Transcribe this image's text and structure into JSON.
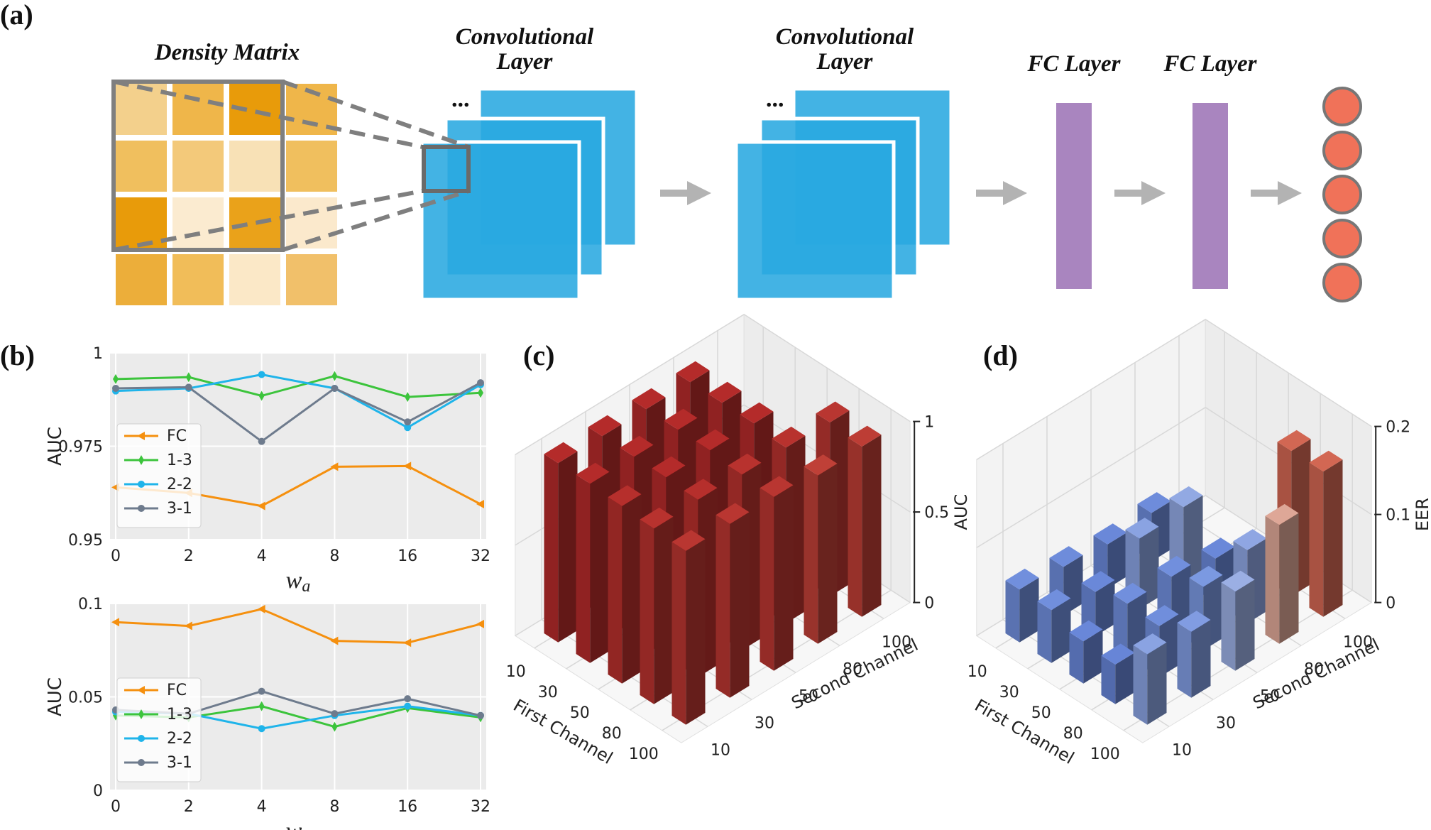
{
  "panel_labels": {
    "a": "(a)",
    "b": "(b)",
    "c": "(c)",
    "d": "(d)"
  },
  "network": {
    "density_matrix_title": "Density Matrix",
    "conv1_title": [
      "Convolutional",
      "Layer"
    ],
    "conv2_title": [
      "Convolutional",
      "Layer"
    ],
    "fc1_title": "FC Layer",
    "fc2_title": "FC Layer",
    "ellipsis": "...",
    "matrix_colors": [
      [
        "#f3d08c",
        "#efb64a",
        "#e89b0a",
        "#efb64a"
      ],
      [
        "#f0bf5e",
        "#f3c97a",
        "#f8e1b6",
        "#f0bf5e"
      ],
      [
        "#e89b0a",
        "#fbebd0",
        "#eaa21a",
        "#fbe9cc"
      ],
      [
        "#ecae3a",
        "#f1bd59",
        "#fbe8c7",
        "#f1c06a"
      ]
    ],
    "colors": {
      "conv": "#29a8e0",
      "fc": "#a985bf",
      "output": "#f07259",
      "arrow": "#b3b3b3"
    },
    "output_nodes": 5
  },
  "chart_data": [
    {
      "type": "line",
      "panel": "b-top",
      "categories": [
        "0",
        "2",
        "4",
        "8",
        "16",
        "32"
      ],
      "xlabel": "w_a",
      "ylabel": "AUC",
      "ylim": [
        0.95,
        1.0
      ],
      "yticks": [
        "0.95",
        "0.975",
        "1"
      ],
      "legend_position": "center-left",
      "grid": true,
      "series": [
        {
          "name": "FC",
          "color": "#f5900f",
          "marker": "tri",
          "values": [
            0.964,
            0.9625,
            0.959,
            0.9695,
            0.9697,
            0.9595
          ]
        },
        {
          "name": "1-3",
          "color": "#3cc43c",
          "marker": "diamond",
          "values": [
            0.993,
            0.9935,
            0.9885,
            0.9938,
            0.9882,
            0.9893
          ]
        },
        {
          "name": "2-2",
          "color": "#1fb4ea",
          "marker": "circle",
          "values": [
            0.9898,
            0.9905,
            0.9942,
            0.9905,
            0.98,
            0.9915
          ]
        },
        {
          "name": "3-1",
          "color": "#6e7b8d",
          "marker": "circle",
          "values": [
            0.9905,
            0.9908,
            0.9763,
            0.9905,
            0.9815,
            0.992
          ]
        }
      ]
    },
    {
      "type": "line",
      "panel": "b-bottom",
      "categories": [
        "0",
        "2",
        "4",
        "8",
        "16",
        "32"
      ],
      "xlabel": "w_a",
      "ylabel": "AUC",
      "ylim": [
        0,
        0.1
      ],
      "yticks": [
        "0",
        "0.05",
        "0.1"
      ],
      "legend_position": "lower-left",
      "grid": true,
      "series": [
        {
          "name": "FC",
          "color": "#f5900f",
          "marker": "tri",
          "values": [
            0.09,
            0.088,
            0.097,
            0.08,
            0.079,
            0.089
          ]
        },
        {
          "name": "1-3",
          "color": "#3cc43c",
          "marker": "diamond",
          "values": [
            0.04,
            0.039,
            0.045,
            0.034,
            0.044,
            0.039
          ]
        },
        {
          "name": "2-2",
          "color": "#1fb4ea",
          "marker": "circle",
          "values": [
            0.042,
            0.041,
            0.033,
            0.04,
            0.045,
            0.04
          ]
        },
        {
          "name": "3-1",
          "color": "#6e7b8d",
          "marker": "circle",
          "values": [
            0.043,
            0.041,
            0.053,
            0.041,
            0.049,
            0.04
          ]
        }
      ]
    },
    {
      "type": "bar3d",
      "panel": "c",
      "xlabel": "First Channel",
      "ylabel": "Second Channel",
      "zlabel": "AUC",
      "x_ticks": [
        "10",
        "30",
        "50",
        "80",
        "100"
      ],
      "y_ticks": [
        "10",
        "30",
        "50",
        "80",
        "100"
      ],
      "zlim": [
        0,
        1
      ],
      "z_ticks": [
        "0",
        "0.5",
        "1"
      ],
      "colormap": "coolwarm",
      "bars": [
        {
          "x": "10",
          "y": "10",
          "z": 0.99
        },
        {
          "x": "10",
          "y": "30",
          "z": 0.99
        },
        {
          "x": "10",
          "y": "50",
          "z": 0.99
        },
        {
          "x": "10",
          "y": "80",
          "z": 0.99
        },
        {
          "x": "30",
          "y": "10",
          "z": 0.99
        },
        {
          "x": "30",
          "y": "30",
          "z": 0.99
        },
        {
          "x": "30",
          "y": "50",
          "z": 0.99
        },
        {
          "x": "30",
          "y": "80",
          "z": 0.99
        },
        {
          "x": "50",
          "y": "10",
          "z": 0.98
        },
        {
          "x": "50",
          "y": "30",
          "z": 0.99
        },
        {
          "x": "50",
          "y": "50",
          "z": 0.99
        },
        {
          "x": "50",
          "y": "80",
          "z": 0.99
        },
        {
          "x": "80",
          "y": "10",
          "z": 0.97
        },
        {
          "x": "80",
          "y": "30",
          "z": 0.98
        },
        {
          "x": "80",
          "y": "50",
          "z": 0.97
        },
        {
          "x": "80",
          "y": "80",
          "z": 0.97
        },
        {
          "x": "80",
          "y": "100",
          "z": 0.96
        },
        {
          "x": "100",
          "y": "10",
          "z": 0.96
        },
        {
          "x": "100",
          "y": "30",
          "z": 0.96
        },
        {
          "x": "100",
          "y": "50",
          "z": 0.96
        },
        {
          "x": "100",
          "y": "80",
          "z": 0.93
        },
        {
          "x": "100",
          "y": "100",
          "z": 0.94
        }
      ]
    },
    {
      "type": "bar3d",
      "panel": "d",
      "xlabel": "First Channel",
      "ylabel": "Second Channel",
      "zlabel": "EER",
      "x_ticks": [
        "10",
        "30",
        "50",
        "80",
        "100"
      ],
      "y_ticks": [
        "10",
        "30",
        "50",
        "80",
        "100"
      ],
      "zlim": [
        0,
        0.2
      ],
      "z_ticks": [
        "0",
        "0.1",
        "0.2"
      ],
      "colormap": "coolwarm",
      "bars": [
        {
          "x": "10",
          "y": "10",
          "z": 0.06
        },
        {
          "x": "10",
          "y": "30",
          "z": 0.055
        },
        {
          "x": "10",
          "y": "50",
          "z": 0.05
        },
        {
          "x": "10",
          "y": "80",
          "z": 0.055
        },
        {
          "x": "30",
          "y": "10",
          "z": 0.06
        },
        {
          "x": "30",
          "y": "30",
          "z": 0.05
        },
        {
          "x": "30",
          "y": "50",
          "z": 0.08
        },
        {
          "x": "30",
          "y": "80",
          "z": 0.085
        },
        {
          "x": "50",
          "y": "10",
          "z": 0.048
        },
        {
          "x": "50",
          "y": "30",
          "z": 0.06
        },
        {
          "x": "50",
          "y": "50",
          "z": 0.06
        },
        {
          "x": "50",
          "y": "80",
          "z": 0.05
        },
        {
          "x": "80",
          "y": "10",
          "z": 0.045
        },
        {
          "x": "80",
          "y": "30",
          "z": 0.058
        },
        {
          "x": "80",
          "y": "50",
          "z": 0.072
        },
        {
          "x": "80",
          "y": "80",
          "z": 0.083
        },
        {
          "x": "80",
          "y": "100",
          "z": 0.165
        },
        {
          "x": "100",
          "y": "10",
          "z": 0.08
        },
        {
          "x": "100",
          "y": "30",
          "z": 0.075
        },
        {
          "x": "100",
          "y": "50",
          "z": 0.09
        },
        {
          "x": "100",
          "y": "80",
          "z": 0.135
        },
        {
          "x": "100",
          "y": "100",
          "z": 0.165
        }
      ]
    }
  ]
}
